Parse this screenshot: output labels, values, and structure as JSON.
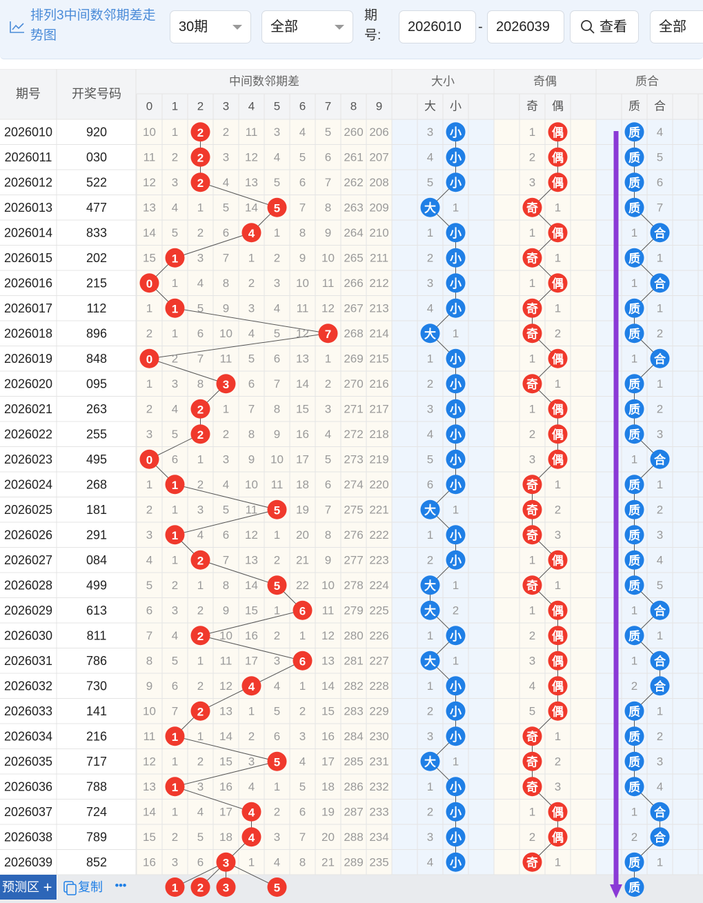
{
  "toolbar": {
    "title": "排列3中间数邻期差走势图",
    "period_select": "30期",
    "type_select": "全部",
    "issue_label": "期号:",
    "issue_from": "2026010",
    "issue_to": "2026039",
    "view_button": "查看",
    "filter_select": "全部"
  },
  "header": {
    "col_issue": "期号",
    "col_number": "开奖号码",
    "group_diff": "中间数邻期差",
    "group_size": "大小",
    "group_parity": "奇偶",
    "group_prime": "质合",
    "diff_digits": [
      "0",
      "1",
      "2",
      "3",
      "4",
      "5",
      "6",
      "7",
      "8",
      "9"
    ],
    "size_labels": [
      "大",
      "小"
    ],
    "parity_labels": [
      "奇",
      "偶"
    ],
    "prime_labels": [
      "质",
      "合"
    ]
  },
  "rows": [
    {
      "issue": "2026010",
      "number": "920",
      "diff": [
        "10",
        "1",
        "2",
        "2",
        "11",
        "3",
        "4",
        "5",
        "260",
        "206"
      ],
      "hit": 2,
      "size": [
        "3",
        "小"
      ],
      "size_hit": 1,
      "parity": [
        "1",
        "偶"
      ],
      "parity_hit": 1,
      "prime": [
        "质",
        "4"
      ],
      "prime_hit": 0
    },
    {
      "issue": "2026011",
      "number": "030",
      "diff": [
        "11",
        "2",
        "2",
        "3",
        "12",
        "4",
        "5",
        "6",
        "261",
        "207"
      ],
      "hit": 2,
      "size": [
        "4",
        "小"
      ],
      "size_hit": 1,
      "parity": [
        "2",
        "偶"
      ],
      "parity_hit": 1,
      "prime": [
        "质",
        "5"
      ],
      "prime_hit": 0
    },
    {
      "issue": "2026012",
      "number": "522",
      "diff": [
        "12",
        "3",
        "2",
        "4",
        "13",
        "5",
        "6",
        "7",
        "262",
        "208"
      ],
      "hit": 2,
      "size": [
        "5",
        "小"
      ],
      "size_hit": 1,
      "parity": [
        "3",
        "偶"
      ],
      "parity_hit": 1,
      "prime": [
        "质",
        "6"
      ],
      "prime_hit": 0
    },
    {
      "issue": "2026013",
      "number": "477",
      "diff": [
        "13",
        "4",
        "1",
        "5",
        "14",
        "5",
        "7",
        "8",
        "263",
        "209"
      ],
      "hit": 5,
      "size": [
        "大",
        "1"
      ],
      "size_hit": 0,
      "parity": [
        "奇",
        "1"
      ],
      "parity_hit": 0,
      "prime": [
        "质",
        "7"
      ],
      "prime_hit": 0
    },
    {
      "issue": "2026014",
      "number": "833",
      "diff": [
        "14",
        "5",
        "2",
        "6",
        "4",
        "1",
        "8",
        "9",
        "264",
        "210"
      ],
      "hit": 4,
      "size": [
        "1",
        "小"
      ],
      "size_hit": 1,
      "parity": [
        "1",
        "偶"
      ],
      "parity_hit": 1,
      "prime": [
        "1",
        "合"
      ],
      "prime_hit": 1
    },
    {
      "issue": "2026015",
      "number": "202",
      "diff": [
        "15",
        "1",
        "3",
        "7",
        "1",
        "2",
        "9",
        "10",
        "265",
        "211"
      ],
      "hit": 1,
      "size": [
        "2",
        "小"
      ],
      "size_hit": 1,
      "parity": [
        "奇",
        "1"
      ],
      "parity_hit": 0,
      "prime": [
        "质",
        "1"
      ],
      "prime_hit": 0
    },
    {
      "issue": "2026016",
      "number": "215",
      "diff": [
        "0",
        "1",
        "4",
        "8",
        "2",
        "3",
        "10",
        "11",
        "266",
        "212"
      ],
      "hit": 0,
      "size": [
        "3",
        "小"
      ],
      "size_hit": 1,
      "parity": [
        "1",
        "偶"
      ],
      "parity_hit": 1,
      "prime": [
        "1",
        "合"
      ],
      "prime_hit": 1
    },
    {
      "issue": "2026017",
      "number": "112",
      "diff": [
        "1",
        "1",
        "5",
        "9",
        "3",
        "4",
        "11",
        "12",
        "267",
        "213"
      ],
      "hit": 1,
      "size": [
        "4",
        "小"
      ],
      "size_hit": 1,
      "parity": [
        "奇",
        "1"
      ],
      "parity_hit": 0,
      "prime": [
        "质",
        "1"
      ],
      "prime_hit": 0
    },
    {
      "issue": "2026018",
      "number": "896",
      "diff": [
        "2",
        "1",
        "6",
        "10",
        "4",
        "5",
        "12",
        "7",
        "268",
        "214"
      ],
      "hit": 7,
      "size": [
        "大",
        "1"
      ],
      "size_hit": 0,
      "parity": [
        "奇",
        "2"
      ],
      "parity_hit": 0,
      "prime": [
        "质",
        "2"
      ],
      "prime_hit": 0
    },
    {
      "issue": "2026019",
      "number": "848",
      "diff": [
        "0",
        "2",
        "7",
        "11",
        "5",
        "6",
        "13",
        "1",
        "269",
        "215"
      ],
      "hit": 0,
      "size": [
        "1",
        "小"
      ],
      "size_hit": 1,
      "parity": [
        "1",
        "偶"
      ],
      "parity_hit": 1,
      "prime": [
        "1",
        "合"
      ],
      "prime_hit": 1
    },
    {
      "issue": "2026020",
      "number": "095",
      "diff": [
        "1",
        "3",
        "8",
        "3",
        "6",
        "7",
        "14",
        "2",
        "270",
        "216"
      ],
      "hit": 3,
      "size": [
        "2",
        "小"
      ],
      "size_hit": 1,
      "parity": [
        "奇",
        "1"
      ],
      "parity_hit": 0,
      "prime": [
        "质",
        "1"
      ],
      "prime_hit": 0
    },
    {
      "issue": "2026021",
      "number": "263",
      "diff": [
        "2",
        "4",
        "2",
        "1",
        "7",
        "8",
        "15",
        "3",
        "271",
        "217"
      ],
      "hit": 2,
      "size": [
        "3",
        "小"
      ],
      "size_hit": 1,
      "parity": [
        "1",
        "偶"
      ],
      "parity_hit": 1,
      "prime": [
        "质",
        "2"
      ],
      "prime_hit": 0
    },
    {
      "issue": "2026022",
      "number": "255",
      "diff": [
        "3",
        "5",
        "2",
        "2",
        "8",
        "9",
        "16",
        "4",
        "272",
        "218"
      ],
      "hit": 2,
      "size": [
        "4",
        "小"
      ],
      "size_hit": 1,
      "parity": [
        "2",
        "偶"
      ],
      "parity_hit": 1,
      "prime": [
        "质",
        "3"
      ],
      "prime_hit": 0
    },
    {
      "issue": "2026023",
      "number": "495",
      "diff": [
        "0",
        "6",
        "1",
        "3",
        "9",
        "10",
        "17",
        "5",
        "273",
        "219"
      ],
      "hit": 0,
      "size": [
        "5",
        "小"
      ],
      "size_hit": 1,
      "parity": [
        "3",
        "偶"
      ],
      "parity_hit": 1,
      "prime": [
        "1",
        "合"
      ],
      "prime_hit": 1
    },
    {
      "issue": "2026024",
      "number": "268",
      "diff": [
        "1",
        "1",
        "2",
        "4",
        "10",
        "11",
        "18",
        "6",
        "274",
        "220"
      ],
      "hit": 1,
      "size": [
        "6",
        "小"
      ],
      "size_hit": 1,
      "parity": [
        "奇",
        "1"
      ],
      "parity_hit": 0,
      "prime": [
        "质",
        "1"
      ],
      "prime_hit": 0
    },
    {
      "issue": "2026025",
      "number": "181",
      "diff": [
        "2",
        "1",
        "3",
        "5",
        "11",
        "5",
        "19",
        "7",
        "275",
        "221"
      ],
      "hit": 5,
      "size": [
        "大",
        "1"
      ],
      "size_hit": 0,
      "parity": [
        "奇",
        "2"
      ],
      "parity_hit": 0,
      "prime": [
        "质",
        "2"
      ],
      "prime_hit": 0
    },
    {
      "issue": "2026026",
      "number": "291",
      "diff": [
        "3",
        "1",
        "4",
        "6",
        "12",
        "1",
        "20",
        "8",
        "276",
        "222"
      ],
      "hit": 1,
      "size": [
        "1",
        "小"
      ],
      "size_hit": 1,
      "parity": [
        "奇",
        "3"
      ],
      "parity_hit": 0,
      "prime": [
        "质",
        "3"
      ],
      "prime_hit": 0
    },
    {
      "issue": "2026027",
      "number": "084",
      "diff": [
        "4",
        "1",
        "2",
        "7",
        "13",
        "2",
        "21",
        "9",
        "277",
        "223"
      ],
      "hit": 2,
      "size": [
        "2",
        "小"
      ],
      "size_hit": 1,
      "parity": [
        "1",
        "偶"
      ],
      "parity_hit": 1,
      "prime": [
        "质",
        "4"
      ],
      "prime_hit": 0
    },
    {
      "issue": "2026028",
      "number": "499",
      "diff": [
        "5",
        "2",
        "1",
        "8",
        "14",
        "5",
        "22",
        "10",
        "278",
        "224"
      ],
      "hit": 5,
      "size": [
        "大",
        "1"
      ],
      "size_hit": 0,
      "parity": [
        "奇",
        "1"
      ],
      "parity_hit": 0,
      "prime": [
        "质",
        "5"
      ],
      "prime_hit": 0
    },
    {
      "issue": "2026029",
      "number": "613",
      "diff": [
        "6",
        "3",
        "2",
        "9",
        "15",
        "1",
        "6",
        "11",
        "279",
        "225"
      ],
      "hit": 6,
      "size": [
        "大",
        "2"
      ],
      "size_hit": 0,
      "parity": [
        "1",
        "偶"
      ],
      "parity_hit": 1,
      "prime": [
        "1",
        "合"
      ],
      "prime_hit": 1
    },
    {
      "issue": "2026030",
      "number": "811",
      "diff": [
        "7",
        "4",
        "2",
        "10",
        "16",
        "2",
        "1",
        "12",
        "280",
        "226"
      ],
      "hit": 2,
      "size": [
        "1",
        "小"
      ],
      "size_hit": 1,
      "parity": [
        "2",
        "偶"
      ],
      "parity_hit": 1,
      "prime": [
        "质",
        "1"
      ],
      "prime_hit": 0
    },
    {
      "issue": "2026031",
      "number": "786",
      "diff": [
        "8",
        "5",
        "1",
        "11",
        "17",
        "3",
        "6",
        "13",
        "281",
        "227"
      ],
      "hit": 6,
      "size": [
        "大",
        "1"
      ],
      "size_hit": 0,
      "parity": [
        "3",
        "偶"
      ],
      "parity_hit": 1,
      "prime": [
        "1",
        "合"
      ],
      "prime_hit": 1
    },
    {
      "issue": "2026032",
      "number": "730",
      "diff": [
        "9",
        "6",
        "2",
        "12",
        "4",
        "4",
        "1",
        "14",
        "282",
        "228"
      ],
      "hit": 4,
      "size": [
        "1",
        "小"
      ],
      "size_hit": 1,
      "parity": [
        "4",
        "偶"
      ],
      "parity_hit": 1,
      "prime": [
        "2",
        "合"
      ],
      "prime_hit": 1
    },
    {
      "issue": "2026033",
      "number": "141",
      "diff": [
        "10",
        "7",
        "2",
        "13",
        "1",
        "5",
        "2",
        "15",
        "283",
        "229"
      ],
      "hit": 2,
      "size": [
        "2",
        "小"
      ],
      "size_hit": 1,
      "parity": [
        "5",
        "偶"
      ],
      "parity_hit": 1,
      "prime": [
        "质",
        "1"
      ],
      "prime_hit": 0
    },
    {
      "issue": "2026034",
      "number": "216",
      "diff": [
        "11",
        "1",
        "1",
        "14",
        "2",
        "6",
        "3",
        "16",
        "284",
        "230"
      ],
      "hit": 1,
      "size": [
        "3",
        "小"
      ],
      "size_hit": 1,
      "parity": [
        "奇",
        "1"
      ],
      "parity_hit": 0,
      "prime": [
        "质",
        "2"
      ],
      "prime_hit": 0
    },
    {
      "issue": "2026035",
      "number": "717",
      "diff": [
        "12",
        "1",
        "2",
        "15",
        "3",
        "5",
        "4",
        "17",
        "285",
        "231"
      ],
      "hit": 5,
      "size": [
        "大",
        "1"
      ],
      "size_hit": 0,
      "parity": [
        "奇",
        "2"
      ],
      "parity_hit": 0,
      "prime": [
        "质",
        "3"
      ],
      "prime_hit": 0
    },
    {
      "issue": "2026036",
      "number": "788",
      "diff": [
        "13",
        "1",
        "3",
        "16",
        "4",
        "1",
        "5",
        "18",
        "286",
        "232"
      ],
      "hit": 1,
      "size": [
        "1",
        "小"
      ],
      "size_hit": 1,
      "parity": [
        "奇",
        "3"
      ],
      "parity_hit": 0,
      "prime": [
        "质",
        "4"
      ],
      "prime_hit": 0
    },
    {
      "issue": "2026037",
      "number": "724",
      "diff": [
        "14",
        "1",
        "4",
        "17",
        "4",
        "2",
        "6",
        "19",
        "287",
        "233"
      ],
      "hit": 4,
      "size": [
        "2",
        "小"
      ],
      "size_hit": 1,
      "parity": [
        "1",
        "偶"
      ],
      "parity_hit": 1,
      "prime": [
        "1",
        "合"
      ],
      "prime_hit": 1
    },
    {
      "issue": "2026038",
      "number": "789",
      "diff": [
        "15",
        "2",
        "5",
        "18",
        "4",
        "3",
        "7",
        "20",
        "288",
        "234"
      ],
      "hit": 4,
      "size": [
        "3",
        "小"
      ],
      "size_hit": 1,
      "parity": [
        "2",
        "偶"
      ],
      "parity_hit": 1,
      "prime": [
        "2",
        "合"
      ],
      "prime_hit": 1
    },
    {
      "issue": "2026039",
      "number": "852",
      "diff": [
        "16",
        "3",
        "6",
        "3",
        "1",
        "4",
        "8",
        "21",
        "289",
        "235"
      ],
      "hit": 3,
      "size": [
        "4",
        "小"
      ],
      "size_hit": 1,
      "parity": [
        "奇",
        "1"
      ],
      "parity_hit": 0,
      "prime": [
        "质",
        "1"
      ],
      "prime_hit": 0
    }
  ],
  "footer": {
    "predict_label": "预测区",
    "predict_plus": "+",
    "copy_label": "复制",
    "more": "•••",
    "predict_balls": [
      {
        "col": 1,
        "text": "1"
      },
      {
        "col": 2,
        "text": "2"
      },
      {
        "col": 3,
        "text": "3"
      },
      {
        "col": 5,
        "text": "5"
      }
    ],
    "predict_prime": "质"
  },
  "colors": {
    "red_ball": "#f0392c",
    "blue_ball": "#1f7fe6",
    "arrow": "#8a3ad6",
    "title_blue": "#4a8bd8",
    "grid_line": "#e4e4e4",
    "diff_bg": "#fdfaf2",
    "size_bg": "#eef5fd"
  }
}
